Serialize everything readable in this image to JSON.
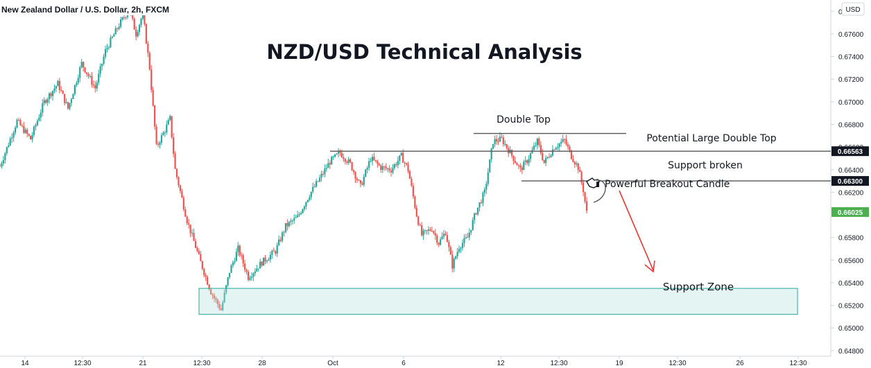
{
  "header": {
    "symbol_label": "New Zealand Dollar / U.S. Dollar, 2h, FXCM",
    "currency_button": "USD"
  },
  "chart_data": {
    "type": "candlestick",
    "title": "NZD/USD Technical Analysis",
    "ylim": [
      0.6475,
      0.679
    ],
    "y_ticks": [
      "0.67800",
      "0.67600",
      "0.67400",
      "0.67200",
      "0.67000",
      "0.66800",
      "0.66600",
      "0.66400",
      "0.66200",
      "0.65800",
      "0.65600",
      "0.65400",
      "0.65200",
      "0.65000",
      "0.64800"
    ],
    "x_ticks": [
      "14",
      "12:30",
      "21",
      "12:30",
      "28",
      "Oct",
      "6",
      "12",
      "12:30",
      "19",
      "12:30",
      "26",
      "12:30"
    ],
    "price_badges": [
      {
        "label": "0.66563",
        "value": 0.66563,
        "color": "#131722"
      },
      {
        "label": "0.66300",
        "value": 0.663,
        "color": "#131722"
      },
      {
        "label": "0.66025",
        "value": 0.66025,
        "color": "#4caf50"
      }
    ],
    "annotations": {
      "double_top": "Double Top",
      "potential_double_top": "Potential Large Double Top",
      "support_broken": "Support broken",
      "breakout_candle": "Powerful Breakout Candle",
      "support_zone": "Support Zone"
    },
    "levels": [
      {
        "name": "double-top-line",
        "value": 0.6672
      },
      {
        "name": "potential-double-top-line",
        "value": 0.66563
      },
      {
        "name": "support-line",
        "value": 0.663
      }
    ],
    "support_zone_range": [
      0.6512,
      0.6535
    ],
    "price_path": [
      {
        "t": 0,
        "p": 0.6643
      },
      {
        "t": 10,
        "p": 0.6683
      },
      {
        "t": 18,
        "p": 0.6667
      },
      {
        "t": 26,
        "p": 0.67
      },
      {
        "t": 34,
        "p": 0.6716
      },
      {
        "t": 40,
        "p": 0.6694
      },
      {
        "t": 48,
        "p": 0.6734
      },
      {
        "t": 56,
        "p": 0.6712
      },
      {
        "t": 62,
        "p": 0.6745
      },
      {
        "t": 70,
        "p": 0.6768
      },
      {
        "t": 76,
        "p": 0.6782
      },
      {
        "t": 80,
        "p": 0.676
      },
      {
        "t": 84,
        "p": 0.6778
      },
      {
        "t": 88,
        "p": 0.673
      },
      {
        "t": 92,
        "p": 0.666
      },
      {
        "t": 97,
        "p": 0.6675
      },
      {
        "t": 100,
        "p": 0.6685
      },
      {
        "t": 103,
        "p": 0.664
      },
      {
        "t": 110,
        "p": 0.6595
      },
      {
        "t": 118,
        "p": 0.6558
      },
      {
        "t": 124,
        "p": 0.6532
      },
      {
        "t": 130,
        "p": 0.6516
      },
      {
        "t": 135,
        "p": 0.655
      },
      {
        "t": 140,
        "p": 0.657
      },
      {
        "t": 146,
        "p": 0.6545
      },
      {
        "t": 154,
        "p": 0.6558
      },
      {
        "t": 162,
        "p": 0.6568
      },
      {
        "t": 168,
        "p": 0.659
      },
      {
        "t": 175,
        "p": 0.6598
      },
      {
        "t": 182,
        "p": 0.6618
      },
      {
        "t": 188,
        "p": 0.6632
      },
      {
        "t": 194,
        "p": 0.6647
      },
      {
        "t": 200,
        "p": 0.6655
      },
      {
        "t": 206,
        "p": 0.6645
      },
      {
        "t": 212,
        "p": 0.6625
      },
      {
        "t": 218,
        "p": 0.665
      },
      {
        "t": 224,
        "p": 0.6642
      },
      {
        "t": 230,
        "p": 0.664
      },
      {
        "t": 236,
        "p": 0.6652
      },
      {
        "t": 240,
        "p": 0.664
      },
      {
        "t": 245,
        "p": 0.66
      },
      {
        "t": 248,
        "p": 0.6582
      },
      {
        "t": 254,
        "p": 0.6588
      },
      {
        "t": 258,
        "p": 0.6575
      },
      {
        "t": 262,
        "p": 0.6585
      },
      {
        "t": 266,
        "p": 0.6555
      },
      {
        "t": 270,
        "p": 0.6572
      },
      {
        "t": 275,
        "p": 0.658
      },
      {
        "t": 280,
        "p": 0.6603
      },
      {
        "t": 285,
        "p": 0.662
      },
      {
        "t": 290,
        "p": 0.6665
      },
      {
        "t": 295,
        "p": 0.6667
      },
      {
        "t": 300,
        "p": 0.6655
      },
      {
        "t": 306,
        "p": 0.664
      },
      {
        "t": 310,
        "p": 0.6648
      },
      {
        "t": 316,
        "p": 0.6665
      },
      {
        "t": 320,
        "p": 0.6646
      },
      {
        "t": 326,
        "p": 0.666
      },
      {
        "t": 332,
        "p": 0.6666
      },
      {
        "t": 336,
        "p": 0.6652
      },
      {
        "t": 340,
        "p": 0.6642
      },
      {
        "t": 343,
        "p": 0.6622
      },
      {
        "t": 345,
        "p": 0.6602
      }
    ]
  }
}
